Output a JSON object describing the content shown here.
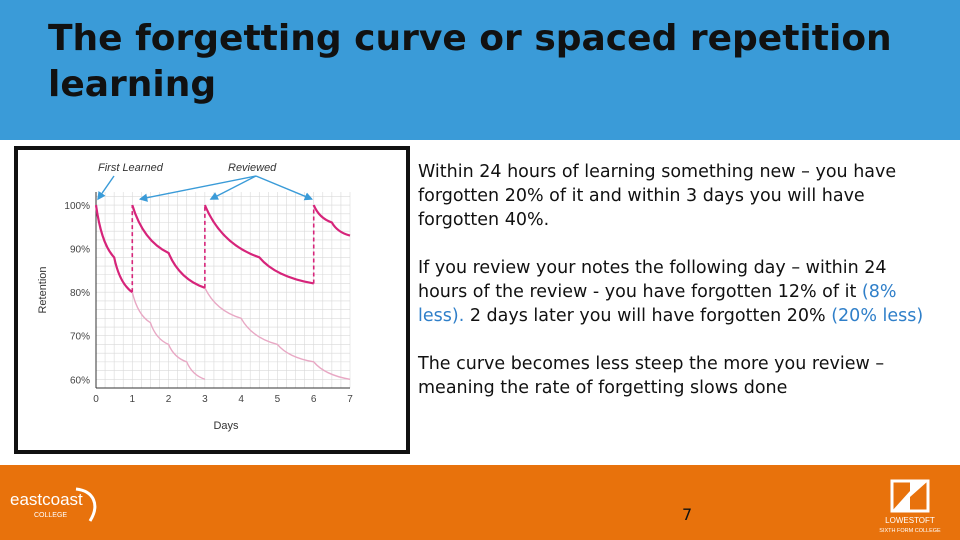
{
  "title": "The forgetting curve or spaced repetition learning",
  "chart_data": {
    "type": "line",
    "annotations": [
      "First Learned",
      "Reviewed"
    ],
    "xlabel": "Days",
    "ylabel": "Retention",
    "x_ticks": [
      "0",
      "1",
      "2",
      "3",
      "4",
      "5",
      "6",
      "7"
    ],
    "y_ticks": [
      "60%",
      "70%",
      "80%",
      "90%",
      "100%"
    ],
    "xlim": [
      0,
      7
    ],
    "ylim": [
      58,
      103
    ],
    "grid": true,
    "series": [
      {
        "x": [
          0,
          0.5,
          1
        ],
        "y": [
          100,
          88,
          80
        ]
      },
      {
        "x": [
          1,
          2,
          3
        ],
        "y": [
          100,
          89,
          81
        ]
      },
      {
        "x": [
          3,
          4.5,
          6
        ],
        "y": [
          100,
          88,
          82
        ]
      },
      {
        "x": [
          6,
          6.5,
          7
        ],
        "y": [
          100,
          96,
          93
        ]
      }
    ],
    "faded_series": [
      {
        "x": [
          0,
          0.5,
          1,
          1.5,
          2,
          2.5,
          3
        ],
        "y": [
          100,
          88,
          80,
          73,
          68,
          64,
          60
        ]
      },
      {
        "x": [
          1,
          2,
          3,
          4,
          5,
          6,
          7
        ],
        "y": [
          100,
          89,
          81,
          74,
          68,
          64,
          60
        ]
      }
    ],
    "review_days": [
      1,
      3,
      6
    ]
  },
  "body": {
    "p1": "Within 24 hours of learning something new – you have forgotten 20% of it and within 3 days you will have forgotten 40%.",
    "p2_a": "If you review your notes the following day – within 24 hours of the review - you have forgotten 12% of it ",
    "p2_hl1": "(8% less).",
    "p2_b": " 2 days later you will have forgotten 20% ",
    "p2_hl2": "(20% less)",
    "p3": "The curve becomes less steep the more you review – meaning the rate of forgetting slows done"
  },
  "footer": {
    "page_number": "7",
    "left_logo_text": "eastcoast",
    "left_logo_sub": "COLLEGE",
    "right_logo_text": "LOWESTOFT",
    "right_logo_sub": "SIXTH FORM COLLEGE"
  },
  "colors": {
    "header_bg": "#3a9bd8",
    "footer_bg": "#e8720c",
    "curve": "#d6247a",
    "faded_curve": "#e8a8c4",
    "highlight_text": "#2f7fc9"
  }
}
